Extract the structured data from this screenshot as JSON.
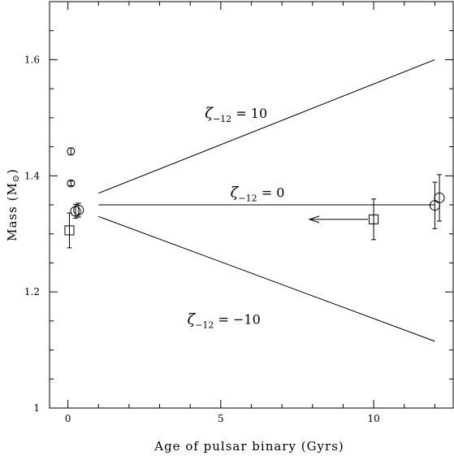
{
  "chart_data": {
    "type": "scatter",
    "title": "",
    "xlabel": "Age of pulsar binary (Gyrs)",
    "ylabel_main": "Mass (M",
    "ylabel_sym": "⊙",
    "ylabel_close": ")",
    "xlim": [
      -0.6,
      12.6
    ],
    "ylim": [
      1.0,
      1.7
    ],
    "xticks": [
      0,
      5,
      10
    ],
    "xtick_labels": [
      "0",
      "5",
      "10"
    ],
    "yticks": [
      1.0,
      1.2,
      1.4,
      1.6
    ],
    "ytick_labels": [
      "1",
      "1.2",
      "1.4",
      "1.6"
    ],
    "grid": false,
    "lines": [
      {
        "zeta": "10",
        "x": [
          1.0,
          12.0
        ],
        "y": [
          1.37,
          1.6
        ]
      },
      {
        "zeta": "0",
        "x": [
          1.0,
          12.0
        ],
        "y": [
          1.35,
          1.35
        ]
      },
      {
        "zeta": "−10",
        "x": [
          1.0,
          12.0
        ],
        "y": [
          1.33,
          1.115
        ]
      }
    ],
    "annotations": [
      {
        "sym": "ζ",
        "sub": "−12",
        "rest": " = 10",
        "x": 5.5,
        "y": 1.5
      },
      {
        "sym": "ζ",
        "sub": "−12",
        "rest": " = 0",
        "x": 6.2,
        "y": 1.363
      },
      {
        "sym": "ζ",
        "sub": "−12",
        "rest": " = −10",
        "x": 5.1,
        "y": 1.145
      }
    ],
    "points": [
      {
        "marker": "circle-small",
        "x": 0.1,
        "y": 1.442,
        "err": 0.006
      },
      {
        "marker": "circle-small",
        "x": 0.1,
        "y": 1.387,
        "err": 0.004
      },
      {
        "marker": "circle",
        "x": 0.25,
        "y": 1.339,
        "err": 0.012
      },
      {
        "marker": "circle",
        "x": 0.35,
        "y": 1.341,
        "err": 0.012
      },
      {
        "marker": "square",
        "x": 0.05,
        "y": 1.306,
        "err": 0.03
      },
      {
        "marker": "square",
        "x": 10.0,
        "y": 1.325,
        "err": 0.035,
        "arrow_to_x": 7.9
      },
      {
        "marker": "circle",
        "x": 12.0,
        "y": 1.349,
        "err": 0.04
      },
      {
        "marker": "circle",
        "x": 12.15,
        "y": 1.362,
        "err": 0.04
      }
    ]
  }
}
